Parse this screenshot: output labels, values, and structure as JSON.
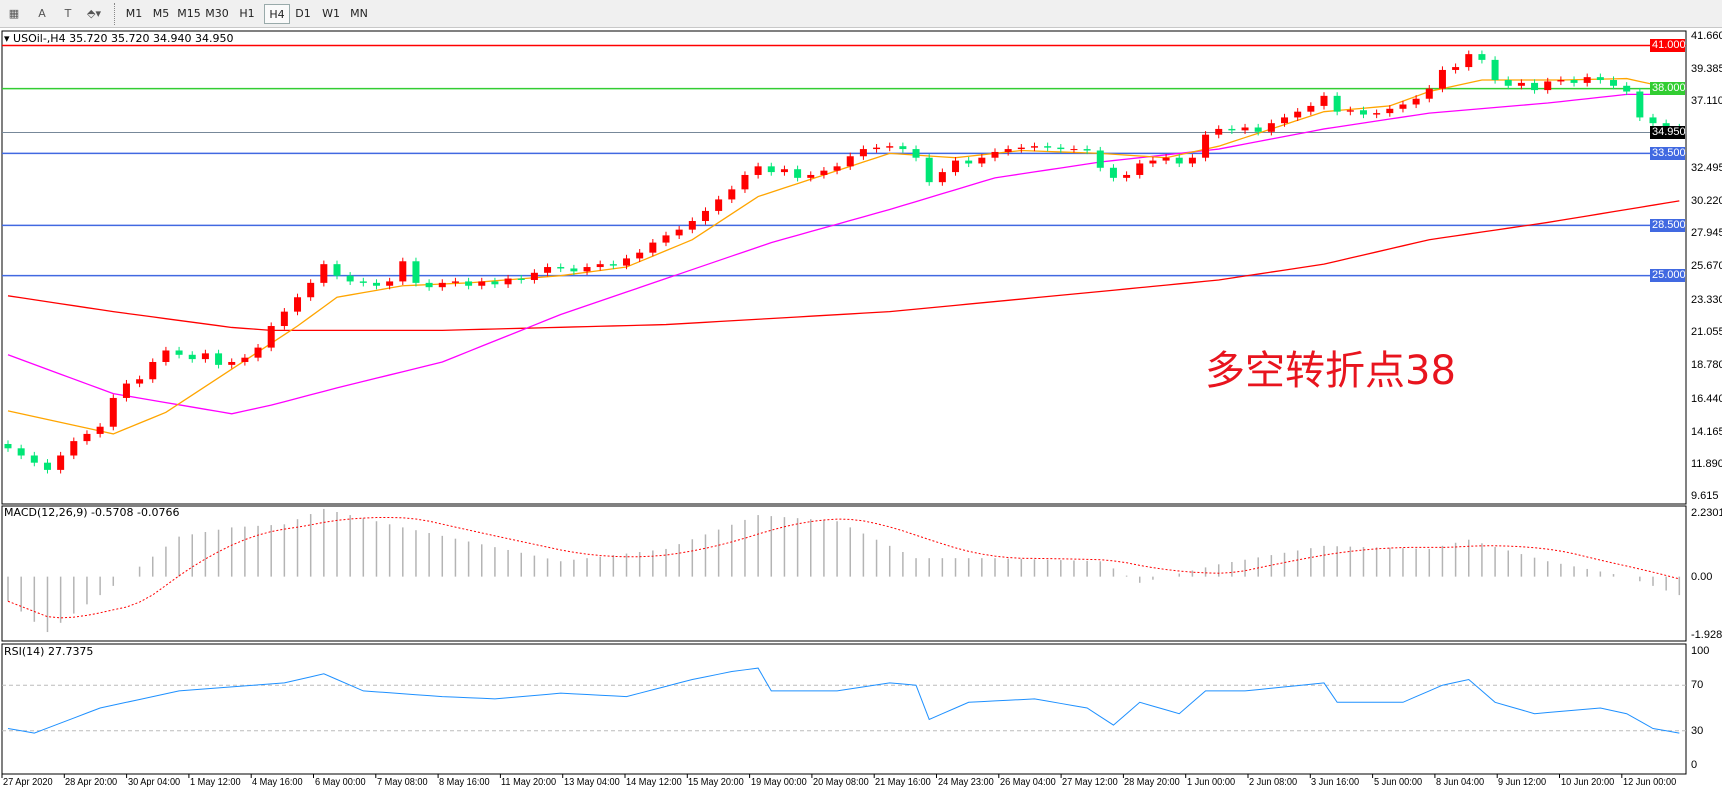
{
  "toolbar": {
    "tools": [
      {
        "name": "grid-tool-icon",
        "glyph": "▦"
      },
      {
        "name": "text-tool",
        "glyph": "A"
      },
      {
        "name": "text-label-tool",
        "glyph": "T"
      },
      {
        "name": "arrows-tool",
        "glyph": "⬘▾"
      }
    ],
    "timeframes": [
      "M1",
      "M5",
      "M15",
      "M30",
      "H1",
      "H4",
      "D1",
      "W1",
      "MN"
    ],
    "active_timeframe": "H4"
  },
  "chart": {
    "title": "USOil-,H4  35.720 35.720 34.940 34.950",
    "symbol": "USOil-",
    "timeframe": "H4",
    "ohlc_last": {
      "open": 35.72,
      "high": 35.72,
      "low": 34.94,
      "close": 34.95
    },
    "annotation": "多空转折点38",
    "price_axis": [
      "41.660",
      "39.385",
      "37.110",
      "32.495",
      "30.220",
      "27.945",
      "25.670",
      "23.330",
      "21.055",
      "18.780",
      "16.440",
      "14.165",
      "11.890",
      "9.615"
    ],
    "ylim": [
      9.615,
      41.66
    ],
    "levels": [
      {
        "label": "41.000",
        "value": 41.0,
        "color": "#ff0000"
      },
      {
        "label": "38.000",
        "value": 38.0,
        "color": "#32cd32"
      },
      {
        "label": "33.500",
        "value": 33.5,
        "color": "#4169e1"
      },
      {
        "label": "28.500",
        "value": 28.5,
        "color": "#4169e1"
      },
      {
        "label": "25.000",
        "value": 25.0,
        "color": "#4169e1"
      }
    ],
    "current_price": {
      "label": "34.950",
      "value": 34.95,
      "color": "#000000"
    },
    "colors": {
      "bull": "#ff0000",
      "bear": "#00e676",
      "ma_fast": "#ffa500",
      "ma_mid": "#ff00ff",
      "ma_slow": "#ff0000"
    },
    "closes": [
      13.0,
      12.5,
      12.0,
      11.5,
      12.5,
      13.5,
      14.0,
      14.5,
      16.5,
      17.5,
      17.8,
      19.0,
      19.8,
      19.5,
      19.2,
      19.6,
      18.8,
      19.0,
      19.3,
      20.0,
      21.5,
      22.5,
      23.5,
      24.5,
      25.8,
      25.0,
      24.6,
      24.5,
      24.3,
      24.6,
      26.0,
      24.5,
      24.2,
      24.5,
      24.6,
      24.3,
      24.6,
      24.4,
      24.8,
      24.7,
      25.2,
      25.6,
      25.5,
      25.3,
      25.6,
      25.8,
      25.7,
      26.2,
      26.6,
      27.3,
      27.8,
      28.2,
      28.8,
      29.5,
      30.3,
      31.0,
      32.0,
      32.6,
      32.2,
      32.4,
      31.8,
      32.0,
      32.3,
      32.6,
      33.3,
      33.8,
      33.9,
      34.0,
      33.8,
      33.2,
      31.5,
      32.2,
      33.0,
      32.8,
      33.2,
      33.6,
      33.8,
      33.9,
      34.0,
      33.9,
      33.8,
      33.8,
      33.7,
      32.5,
      31.8,
      32.0,
      32.8,
      33.0,
      33.2,
      32.8,
      33.2,
      34.8,
      35.2,
      35.1,
      35.3,
      35.0,
      35.6,
      36.0,
      36.4,
      36.8,
      37.5,
      36.4,
      36.5,
      36.2,
      36.3,
      36.6,
      36.9,
      37.3,
      38.0,
      39.3,
      39.5,
      40.4,
      40.0,
      38.6,
      38.2,
      38.4,
      37.9,
      38.5,
      38.6,
      38.4,
      38.8,
      38.6,
      38.2,
      37.8,
      36.0,
      35.6,
      35.3,
      34.95
    ],
    "ma_slow": [
      [
        0,
        23.6
      ],
      [
        8,
        22.5
      ],
      [
        17,
        21.4
      ],
      [
        20,
        21.2
      ],
      [
        33,
        21.2
      ],
      [
        50,
        21.6
      ],
      [
        67,
        22.5
      ],
      [
        83,
        23.9
      ],
      [
        92,
        24.7
      ],
      [
        100,
        25.8
      ],
      [
        108,
        27.5
      ],
      [
        117,
        28.7
      ],
      [
        127,
        30.2
      ]
    ],
    "ma_mid": [
      [
        0,
        19.5
      ],
      [
        8,
        16.8
      ],
      [
        17,
        15.4
      ],
      [
        20,
        16.0
      ],
      [
        25,
        17.2
      ],
      [
        33,
        19.0
      ],
      [
        42,
        22.3
      ],
      [
        50,
        24.8
      ],
      [
        58,
        27.3
      ],
      [
        67,
        29.6
      ],
      [
        75,
        31.8
      ],
      [
        83,
        32.9
      ],
      [
        92,
        33.8
      ],
      [
        100,
        35.2
      ],
      [
        108,
        36.3
      ],
      [
        117,
        37.0
      ],
      [
        123,
        37.6
      ],
      [
        127,
        37.6
      ]
    ],
    "ma_fast": [
      [
        0,
        15.6
      ],
      [
        4,
        14.8
      ],
      [
        8,
        14.0
      ],
      [
        12,
        15.5
      ],
      [
        17,
        18.5
      ],
      [
        22,
        21.5
      ],
      [
        25,
        23.5
      ],
      [
        30,
        24.3
      ],
      [
        35,
        24.5
      ],
      [
        42,
        25.0
      ],
      [
        47,
        25.6
      ],
      [
        52,
        27.5
      ],
      [
        57,
        30.5
      ],
      [
        62,
        32.0
      ],
      [
        67,
        33.5
      ],
      [
        72,
        33.2
      ],
      [
        77,
        33.7
      ],
      [
        83,
        33.5
      ],
      [
        88,
        33.2
      ],
      [
        92,
        34.0
      ],
      [
        96,
        35.2
      ],
      [
        100,
        36.4
      ],
      [
        105,
        36.8
      ],
      [
        108,
        37.8
      ],
      [
        112,
        38.6
      ],
      [
        118,
        38.6
      ],
      [
        123,
        38.7
      ],
      [
        127,
        37.9
      ]
    ]
  },
  "macd": {
    "title": "MACD(12,26,9) -0.5708 -0.0766",
    "axis": [
      "2.2301",
      "0.00",
      "-1.9287"
    ],
    "ylim": [
      -1.9287,
      2.2301
    ],
    "main": [
      [
        0,
        -0.8
      ],
      [
        3,
        -1.8
      ],
      [
        9,
        0
      ],
      [
        13,
        1.3
      ],
      [
        17,
        1.6
      ],
      [
        21,
        1.7
      ],
      [
        24,
        2.2
      ],
      [
        30,
        1.6
      ],
      [
        42,
        0.5
      ],
      [
        50,
        0.9
      ],
      [
        57,
        2.0
      ],
      [
        63,
        1.8
      ],
      [
        69,
        0.6
      ],
      [
        75,
        0.6
      ],
      [
        83,
        0.5
      ],
      [
        86,
        -0.2
      ],
      [
        92,
        0.4
      ],
      [
        100,
        1.0
      ],
      [
        108,
        0.9
      ],
      [
        111,
        1.2
      ],
      [
        117,
        0.5
      ],
      [
        123,
        0.0
      ],
      [
        127,
        -0.6
      ]
    ],
    "colors": {
      "histogram": "#b4b4b4",
      "signal": "#ff0000"
    }
  },
  "rsi": {
    "title": "RSI(14) 27.7375",
    "axis": [
      "100",
      "70",
      "30",
      "0"
    ],
    "levels": [
      70,
      30
    ],
    "values": [
      [
        0,
        32
      ],
      [
        2,
        28
      ],
      [
        7,
        50
      ],
      [
        11,
        60
      ],
      [
        13,
        65
      ],
      [
        21,
        72
      ],
      [
        24,
        80
      ],
      [
        27,
        65
      ],
      [
        33,
        60
      ],
      [
        37,
        58
      ],
      [
        42,
        63
      ],
      [
        47,
        60
      ],
      [
        52,
        75
      ],
      [
        55,
        82
      ],
      [
        57,
        85
      ],
      [
        58,
        65
      ],
      [
        63,
        65
      ],
      [
        67,
        72
      ],
      [
        69,
        70
      ],
      [
        70,
        40
      ],
      [
        73,
        55
      ],
      [
        78,
        58
      ],
      [
        82,
        50
      ],
      [
        84,
        35
      ],
      [
        86,
        55
      ],
      [
        89,
        45
      ],
      [
        91,
        65
      ],
      [
        94,
        65
      ],
      [
        100,
        72
      ],
      [
        101,
        55
      ],
      [
        106,
        55
      ],
      [
        109,
        70
      ],
      [
        111,
        75
      ],
      [
        113,
        55
      ],
      [
        116,
        45
      ],
      [
        121,
        50
      ],
      [
        123,
        45
      ],
      [
        125,
        32
      ],
      [
        127,
        28
      ]
    ],
    "color": "#1e90ff"
  },
  "time_axis": [
    "27 Apr 2020",
    "28 Apr 20:00",
    "30 Apr 04:00",
    "1 May 12:00",
    "4 May 16:00",
    "6 May 00:00",
    "7 May 08:00",
    "8 May 16:00",
    "11 May 20:00",
    "13 May 04:00",
    "14 May 12:00",
    "15 May 20:00",
    "19 May 00:00",
    "20 May 08:00",
    "21 May 16:00",
    "24 May 23:00",
    "26 May 04:00",
    "27 May 12:00",
    "28 May 20:00",
    "1 Jun 00:00",
    "2 Jun 08:00",
    "3 Jun 16:00",
    "5 Jun 00:00",
    "8 Jun 04:00",
    "9 Jun 12:00",
    "10 Jun 20:00",
    "12 Jun 00:00"
  ]
}
